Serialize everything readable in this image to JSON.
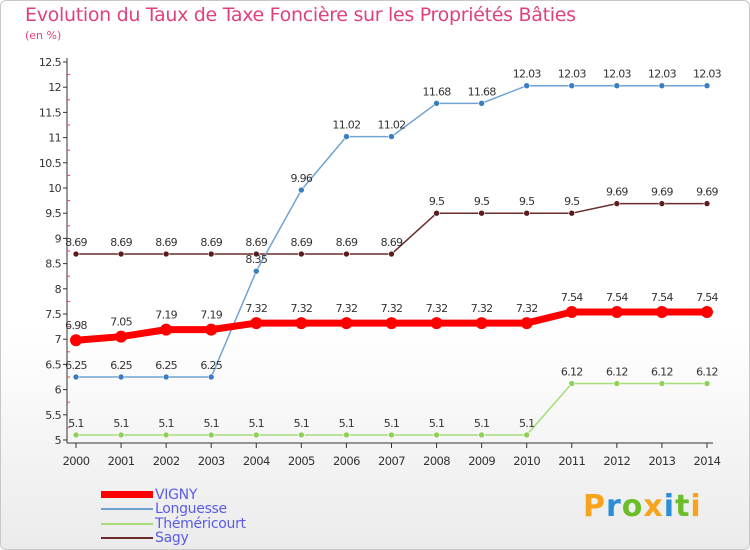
{
  "title": "Evolution du Taux de Taxe Foncière sur les Propriétés Bâties",
  "subtitle": "(en %)",
  "logo": "Proxiti",
  "chart_data": {
    "type": "line",
    "x": [
      "2000",
      "2001",
      "2002",
      "2003",
      "2004",
      "2005",
      "2006",
      "2007",
      "2008",
      "2009",
      "2010",
      "2011",
      "2012",
      "2013",
      "2014"
    ],
    "ylim": [
      5,
      12.5
    ],
    "yticks": [
      "5",
      "5.5",
      "6",
      "6.5",
      "7",
      "7.5",
      "8",
      "8.5",
      "9",
      "9.5",
      "10",
      "10.5",
      "11",
      "11.5",
      "12",
      "12.5"
    ],
    "grid": false,
    "legend_position": "bottom-left",
    "series": [
      {
        "name": "Sagy",
        "color": "#6b2b2b",
        "width": 1.5,
        "values": [
          8.69,
          8.69,
          8.69,
          8.69,
          8.69,
          8.69,
          8.69,
          8.69,
          9.5,
          9.5,
          9.5,
          9.5,
          9.69,
          9.69,
          9.69
        ],
        "labels": [
          "8.69",
          "8.69",
          "8.69",
          "8.69",
          "8.69",
          "8.69",
          "8.69",
          "8.69",
          "9.5",
          "9.5",
          "9.5",
          "9.5",
          "9.69",
          "9.69",
          "9.69"
        ]
      },
      {
        "name": "Longuesse",
        "color": "#6fa3d4",
        "width": 1.5,
        "values": [
          6.25,
          6.25,
          6.25,
          6.25,
          8.35,
          9.96,
          11.02,
          11.02,
          11.68,
          11.68,
          12.03,
          12.03,
          12.03,
          12.03,
          12.03
        ],
        "labels": [
          "6.25",
          "6.25",
          "6.25",
          "6.25",
          "8.35",
          "9.96",
          "11.02",
          "11.02",
          "11.68",
          "11.68",
          "12.03",
          "12.03",
          "12.03",
          "12.03",
          "12.03"
        ]
      },
      {
        "name": "Théméricourt",
        "color": "#a6dc7a",
        "width": 1.5,
        "values": [
          5.1,
          5.1,
          5.1,
          5.1,
          5.1,
          5.1,
          5.1,
          5.1,
          5.1,
          5.1,
          5.1,
          6.12,
          6.12,
          6.12,
          6.12
        ],
        "labels": [
          "5.1",
          "5.1",
          "5.1",
          "5.1",
          "5.1",
          "5.1",
          "5.1",
          "5.1",
          "5.1",
          "5.1",
          "5.1",
          "6.12",
          "6.12",
          "6.12",
          "6.12"
        ]
      },
      {
        "name": "VIGNY",
        "color": "#ff0000",
        "width": 7,
        "values": [
          6.98,
          7.05,
          7.19,
          7.19,
          7.32,
          7.32,
          7.32,
          7.32,
          7.32,
          7.32,
          7.32,
          7.54,
          7.54,
          7.54,
          7.54
        ],
        "labels": [
          "6.98",
          "7.05",
          "7.19",
          "7.19",
          "7.32",
          "7.32",
          "7.32",
          "7.32",
          "7.32",
          "7.32",
          "7.32",
          "7.54",
          "7.54",
          "7.54",
          "7.54"
        ]
      }
    ],
    "legend": [
      "VIGNY",
      "Longuesse",
      "Théméricourt",
      "Sagy"
    ]
  },
  "colors": {
    "title": "#e0407e",
    "axis": "#333333",
    "tick_minor": "#ff3366",
    "legend_text": "#5b5be6",
    "marker_longuesse": "#3a7ec0",
    "marker_theme": "#8fcf5a",
    "marker_sagy": "#5a1c1c",
    "marker_vigny": "#ff0000"
  },
  "logo_colors": [
    "#f7a31c",
    "#2a8fd6",
    "#6bbd2a",
    "#f7a31c",
    "#2a8fd6",
    "#6bbd2a",
    "#f7a31c"
  ]
}
